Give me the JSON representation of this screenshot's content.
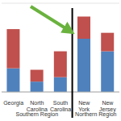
{
  "chart_data": {
    "type": "bar",
    "stacked": true,
    "categories": [
      "Georgia",
      "North Carolina",
      "South Carolina",
      "New York",
      "New Jersey"
    ],
    "series": [
      {
        "color": "#4f81bd",
        "values": [
          32,
          14,
          20,
          72,
          55
        ]
      },
      {
        "color": "#c0504d",
        "values": [
          53,
          16,
          35,
          30,
          25
        ]
      }
    ],
    "groups": [
      {
        "name": "Southern Region",
        "count": 3
      },
      {
        "name": "Northern Region",
        "count": 2
      }
    ],
    "ylim": [
      0,
      120
    ],
    "yticks": [
      0,
      20,
      40,
      60,
      80,
      100,
      120
    ],
    "grid": true,
    "tick_labels": "x"
  }
}
